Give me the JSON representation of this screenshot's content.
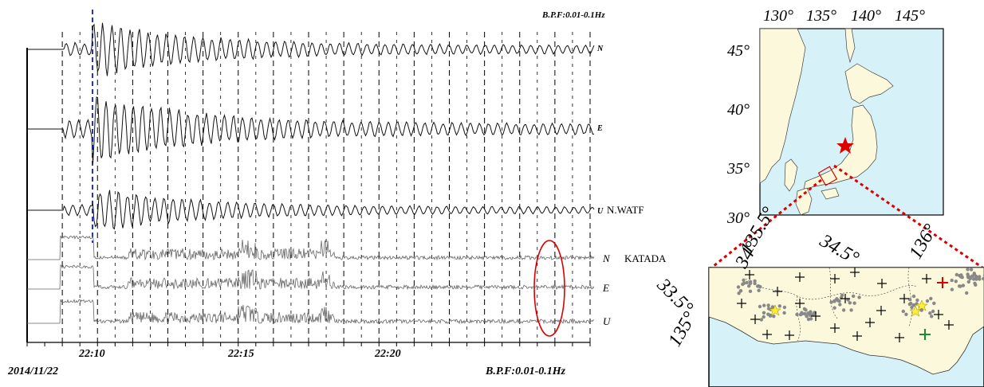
{
  "chart_data": [
    {
      "type": "line",
      "title": "",
      "panel": "seismograms",
      "filter_label_top": "B.P.F:0.01-0.1Hz",
      "filter_label_bottom": "B.P.F:0.01-0.1Hz",
      "date_label": "2014/11/22",
      "x_ticks": [
        "22:10",
        "22:15",
        "22:20"
      ],
      "x_unit": "time (hh:mm, 2014/11/22)",
      "xlim": [
        "22:08",
        "22:24"
      ],
      "vertical_gridlines": "every 30 s (dashed)",
      "p_arrival_marker": {
        "time": "22:10:00",
        "style": "blue dashed"
      },
      "stations": [
        {
          "name": "N.WATF",
          "components": [
            "N",
            "E",
            "U"
          ],
          "signal": "broadband seismic waveform"
        },
        {
          "name": "KATADA",
          "components": [
            "N",
            "E",
            "U"
          ],
          "signal": "tremor-like noisy record"
        }
      ],
      "highlight": {
        "shape": "ellipse",
        "color": "#dd0000",
        "time_range": [
          "22:23:15",
          "22:23:45"
        ],
        "stations": [
          "KATADA"
        ]
      }
    },
    {
      "type": "map",
      "panel": "overview-map",
      "lon_ticks": [
        "130°",
        "135°",
        "140°",
        "145°"
      ],
      "lat_ticks": [
        "45°",
        "40°",
        "35°",
        "30°"
      ],
      "epicenter_marker": {
        "symbol": "star",
        "color": "#dd0000"
      },
      "inset_box_color": "#dd0000"
    },
    {
      "type": "map",
      "panel": "inset-map",
      "lon_ticks": [
        "135°",
        "135.5°",
        "136°"
      ],
      "lat_ticks": [
        "33.5°",
        "34°",
        "34.5°"
      ],
      "station_markers": {
        "symbol": "+",
        "color": "#000000"
      },
      "highlighted_stations": [
        {
          "color": "#dd0000",
          "symbol": "+"
        },
        {
          "color": "#1a8a3a",
          "symbol": "+"
        }
      ],
      "tremor_dots_color": "#888888",
      "vlfe_star_color": "#ffee33"
    }
  ],
  "colors": {
    "land": "#fbf8dc",
    "sea": "#d6f1f8",
    "trace": "#111111",
    "noisy_trace": "#666666",
    "p_marker": "#2233cc",
    "highlight": "#dd0000"
  }
}
